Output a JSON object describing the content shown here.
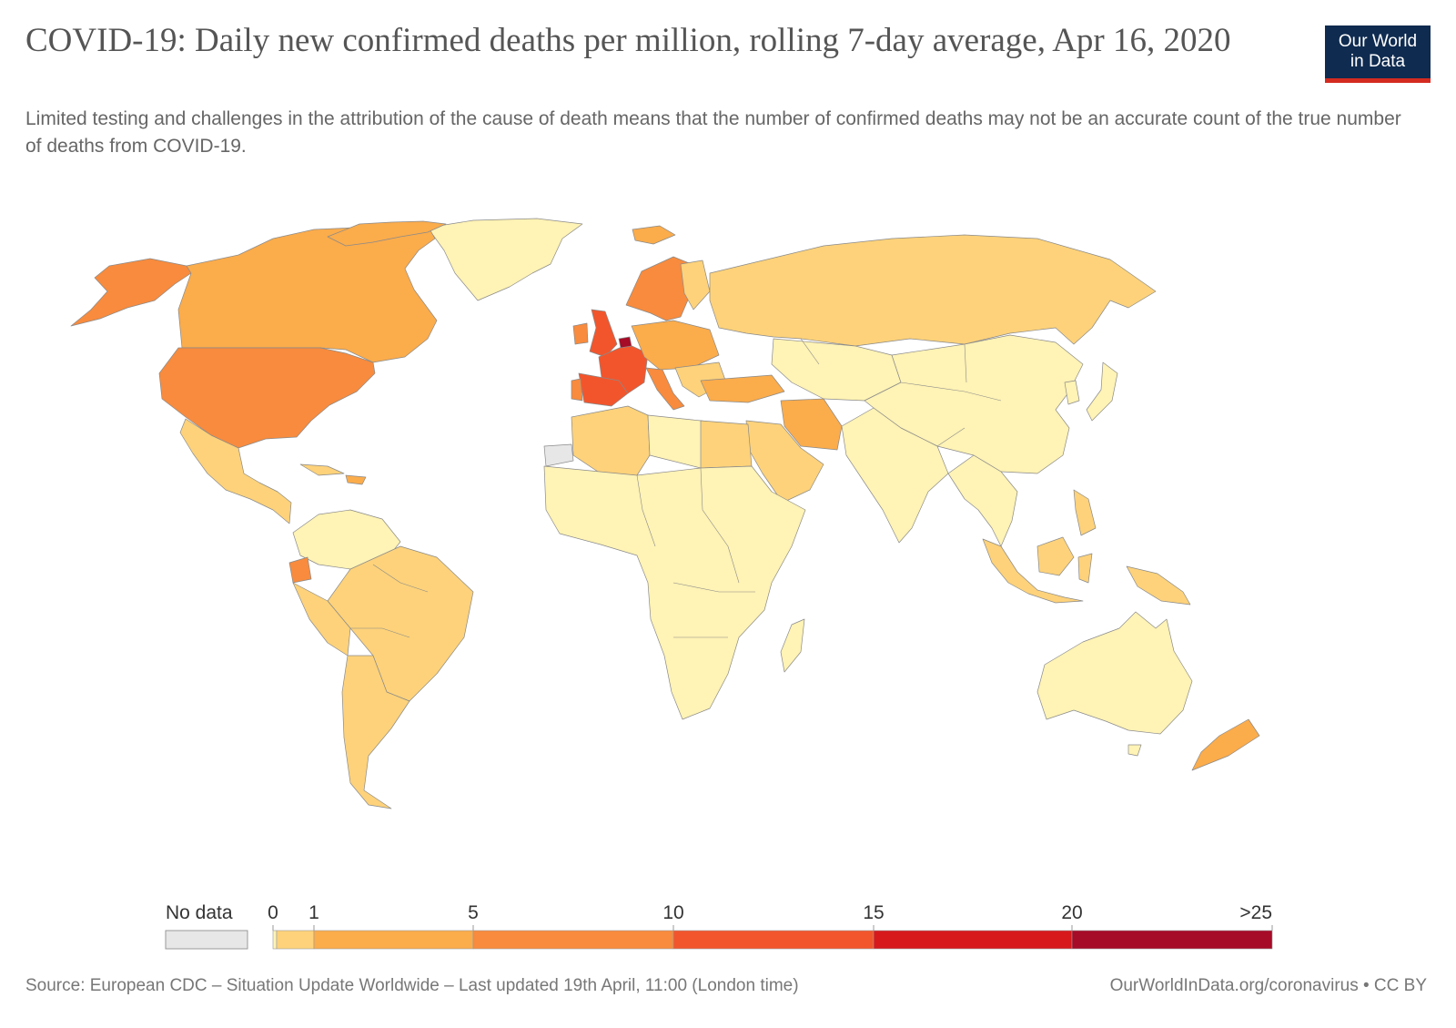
{
  "header": {
    "title": "COVID-19: Daily new confirmed deaths per million, rolling 7-day average, Apr 16, 2020",
    "subtitle": "Limited testing and challenges in the attribution of the cause of death means that the number of confirmed deaths may not be an accurate count of the true number of deaths from COVID-19.",
    "logo_line1": "Our World",
    "logo_line2": "in Data"
  },
  "colors": {
    "no_data": "#e7e7e7",
    "bin_0": "#fff3b5",
    "bin_1": "#fdd27a",
    "bin_2": "#fbac4b",
    "bin_3": "#f88b3d",
    "bin_4": "#f2552c",
    "bin_5": "#d7191c",
    "bin_6": "#a60b27",
    "logo_bg": "#0f2b50",
    "logo_accent": "#d42b21"
  },
  "legend": {
    "no_data_label": "No data",
    "ticks": [
      "0",
      "1",
      "5",
      "10",
      "15",
      "20",
      ">25"
    ]
  },
  "footer": {
    "source": "Source: European CDC – Situation Update Worldwide – Last updated 19th April, 11:00 (London time)",
    "license": "OurWorldInData.org/coronavirus • CC BY"
  }
}
